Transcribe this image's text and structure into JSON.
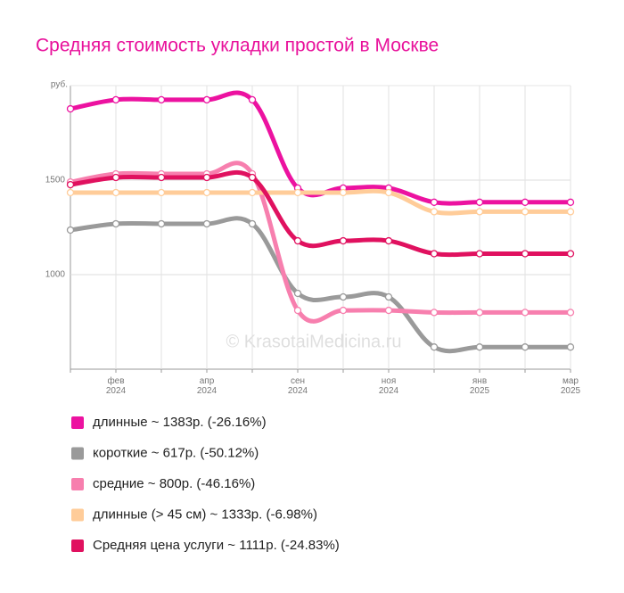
{
  "chart_data": {
    "type": "line",
    "title": "Средняя стоимость укладки простой в Москве",
    "y_label": "руб.",
    "watermark": "© KrasotaiMedicina.ru",
    "categories": [
      null,
      "фев 2024",
      null,
      "апр 2024",
      null,
      "сен 2024",
      null,
      "ноя 2024",
      null,
      "янв 2025",
      null,
      "мар 2025"
    ],
    "ylim": [
      500,
      2000
    ],
    "yticks": [
      1000,
      1500
    ],
    "grid": true,
    "series": [
      {
        "name": "длинные ~ 1383р. (-26.16%)",
        "color": "#ec12a0",
        "values": [
          1877,
          1925,
          1925,
          1925,
          1925,
          1458,
          1458,
          1458,
          1383,
          1383,
          1383,
          1383
        ]
      },
      {
        "name": "короткие ~ 617р. (-50.12%)",
        "color": "#9a9a9a",
        "values": [
          1236,
          1269,
          1269,
          1269,
          1269,
          901,
          882,
          882,
          617,
          617,
          617,
          617
        ]
      },
      {
        "name": "средние ~ 800р. (-46.16%)",
        "color": "#f77fae",
        "values": [
          1490,
          1533,
          1533,
          1533,
          1533,
          811,
          811,
          811,
          800,
          800,
          800,
          800
        ]
      },
      {
        "name": "длинные (> 45 см) ~ 1333р. (-6.98%)",
        "color": "#ffcc99",
        "values": [
          1434,
          1434,
          1434,
          1434,
          1434,
          1434,
          1434,
          1434,
          1333,
          1333,
          1333,
          1333
        ]
      },
      {
        "name": "Средняя цена услуги ~ 1111р. (-24.83%)",
        "color": "#e0115f",
        "values": [
          1476,
          1514,
          1514,
          1514,
          1514,
          1179,
          1179,
          1179,
          1111,
          1111,
          1111,
          1111
        ]
      }
    ]
  }
}
